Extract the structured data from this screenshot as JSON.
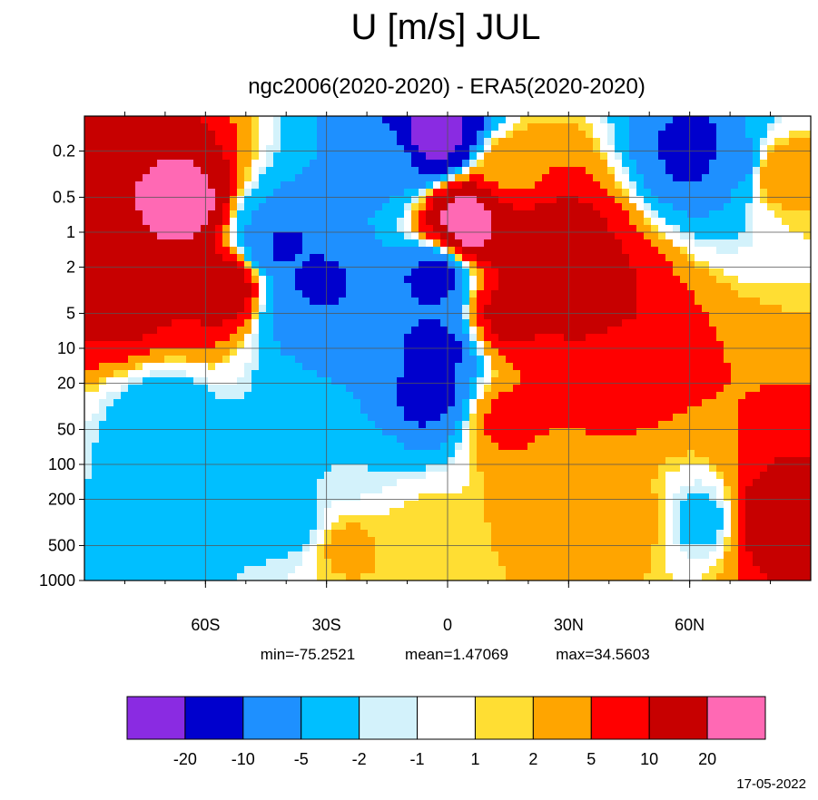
{
  "chart_data": {
    "type": "heatmap",
    "title": "U [m/s] JUL",
    "subtitle": "ngc2006(2020-2020) - ERA5(2020-2020)",
    "xlabel": "",
    "ylabel": "",
    "x_ticks": [
      {
        "value": -60,
        "label": "60S"
      },
      {
        "value": -30,
        "label": "30S"
      },
      {
        "value": 0,
        "label": "0"
      },
      {
        "value": 30,
        "label": "30N"
      },
      {
        "value": 60,
        "label": "60N"
      }
    ],
    "xlim": [
      -90,
      90
    ],
    "y_scale": "log",
    "y_axis_reversed": true,
    "y_ticks": [
      {
        "value": 0.2,
        "label": "0.2"
      },
      {
        "value": 0.5,
        "label": "0.5"
      },
      {
        "value": 1,
        "label": "1"
      },
      {
        "value": 2,
        "label": "2"
      },
      {
        "value": 5,
        "label": "5"
      },
      {
        "value": 10,
        "label": "10"
      },
      {
        "value": 20,
        "label": "20"
      },
      {
        "value": 50,
        "label": "50"
      },
      {
        "value": 100,
        "label": "100"
      },
      {
        "value": 200,
        "label": "200"
      },
      {
        "value": 500,
        "label": "500"
      },
      {
        "value": 1000,
        "label": "1000"
      }
    ],
    "ylim": [
      1000,
      0.1
    ],
    "grid": true,
    "stats": {
      "min_label": "min=-75.2521",
      "mean_label": "mean=1.47069",
      "max_label": "max=34.5603"
    },
    "date": "17-05-2022",
    "colorbar": {
      "colors": [
        "#8a2be2",
        "#0000cd",
        "#1e90ff",
        "#00bfff",
        "#d3f2fb",
        "#ffffff",
        "#ffde33",
        "#ffa500",
        "#ff0000",
        "#c70000",
        "#ff69b4"
      ],
      "boundaries": [
        -20,
        -10,
        -5,
        -2,
        -1,
        1,
        2,
        5,
        10,
        20
      ],
      "boundary_labels": [
        "-20",
        "-10",
        "-5",
        "-2",
        "-1",
        "1",
        "2",
        "5",
        "10",
        "20"
      ]
    },
    "features": [
      {
        "lat": -65,
        "p": 0.6,
        "value": 25
      },
      {
        "lat": -80,
        "p": 3,
        "value": 15
      },
      {
        "lat": -55,
        "p": 3,
        "value": 15
      },
      {
        "lat": -45,
        "p": 1,
        "value": -5
      },
      {
        "lat": -42,
        "p": 1.2,
        "value": -12
      },
      {
        "lat": -33,
        "p": 3,
        "value": -12
      },
      {
        "lat": -38,
        "p": 5,
        "value": -6
      },
      {
        "lat": -25,
        "p": 15,
        "value": -5
      },
      {
        "lat": -3,
        "p": 0.15,
        "value": -25
      },
      {
        "lat": -15,
        "p": 0.25,
        "value": -6
      },
      {
        "lat": 15,
        "p": 0.3,
        "value": 4
      },
      {
        "lat": 5,
        "p": 0.8,
        "value": 25
      },
      {
        "lat": 25,
        "p": 1.5,
        "value": 18
      },
      {
        "lat": -3,
        "p": 2.5,
        "value": -12
      },
      {
        "lat": -3,
        "p": 10,
        "value": -12
      },
      {
        "lat": -5,
        "p": 25,
        "value": -12
      },
      {
        "lat": 15,
        "p": 5,
        "value": 12
      },
      {
        "lat": 35,
        "p": 4,
        "value": 12
      },
      {
        "lat": 40,
        "p": 15,
        "value": 8
      },
      {
        "lat": 15,
        "p": 40,
        "value": 6
      },
      {
        "lat": 62,
        "p": 0.2,
        "value": -12
      },
      {
        "lat": 72,
        "p": 0.25,
        "value": -6
      },
      {
        "lat": 82,
        "p": 0.3,
        "value": 4
      },
      {
        "lat": -70,
        "p": 40,
        "value": -4
      },
      {
        "lat": -68,
        "p": 300,
        "value": -3
      },
      {
        "lat": -38,
        "p": 300,
        "value": -3
      },
      {
        "lat": -25,
        "p": 100,
        "value": -2
      },
      {
        "lat": 80,
        "p": 300,
        "value": 14
      },
      {
        "lat": 63,
        "p": 300,
        "value": -3
      },
      {
        "lat": 45,
        "p": 300,
        "value": 3
      },
      {
        "lat": -5,
        "p": 400,
        "value": 2
      },
      {
        "lat": -25,
        "p": 500,
        "value": 2.5
      },
      {
        "lat": 25,
        "p": 200,
        "value": 3
      }
    ]
  }
}
